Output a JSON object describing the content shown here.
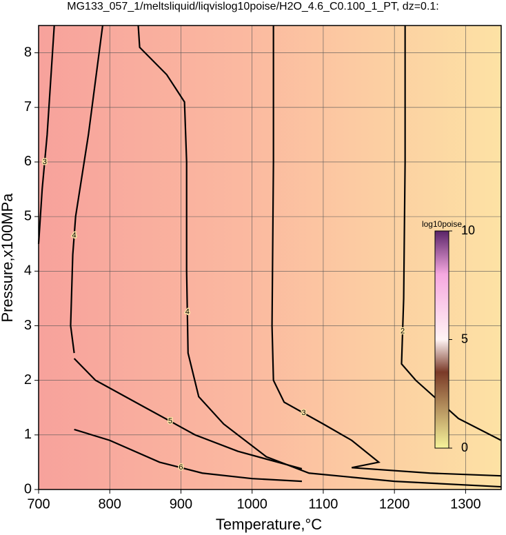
{
  "chart_data": {
    "type": "contour",
    "title": "MG133_057_1/meltsliquid/liqvislog10poise/H2O_4.6_C0.100_1_PT, dz=0.1:",
    "x_label": "Temperature,°C",
    "y_label": "Pressure,x100MPa",
    "xlim": [
      700,
      1350
    ],
    "ylim": [
      0,
      8.5
    ],
    "xticks": [
      700,
      800,
      900,
      1000,
      1100,
      1200,
      1300
    ],
    "yticks": [
      0,
      1,
      2,
      3,
      4,
      5,
      6,
      7,
      8
    ],
    "grid": true,
    "contours": [
      {
        "level": 2,
        "x": [
          1215,
          1215,
          1213,
          1210,
          1230,
          1290,
          1350
        ],
        "y": [
          8.5,
          6,
          3.5,
          2.3,
          2.0,
          1.3,
          0.9
        ]
      },
      {
        "level": 3,
        "x": [
          1030,
          1030,
          1028,
          1030,
          1045,
          1100,
          1140,
          1178,
          1140,
          1250,
          1350
        ],
        "y": [
          8.5,
          6,
          3,
          2,
          1.6,
          1.2,
          0.9,
          0.5,
          0.4,
          0.3,
          0.25
        ]
      },
      {
        "level": 4,
        "x": [
          840,
          842,
          880,
          905,
          908,
          908,
          910,
          925,
          960,
          1020,
          1080,
          1200,
          1350
        ],
        "y": [
          8.5,
          8.1,
          7.6,
          7.1,
          6,
          4,
          2.5,
          1.7,
          1.2,
          0.6,
          0.3,
          0.15,
          0.05
        ]
      },
      {
        "level": 4,
        "x": [
          790,
          770,
          752,
          748,
          745,
          750
        ],
        "y": [
          8.5,
          6.5,
          5,
          4.3,
          3,
          2.5
        ]
      },
      {
        "level": 5,
        "x": [
          750,
          780,
          850,
          920,
          980,
          1050,
          1070
        ],
        "y": [
          2.4,
          2.0,
          1.5,
          1.0,
          0.7,
          0.45,
          0.38
        ]
      },
      {
        "level": 6,
        "x": [
          750,
          800,
          870,
          930,
          1000,
          1070
        ],
        "y": [
          1.1,
          0.9,
          0.5,
          0.3,
          0.2,
          0.15
        ]
      },
      {
        "level": 3,
        "x": [
          722,
          712,
          705,
          700
        ],
        "y": [
          8.5,
          6.5,
          5.5,
          4.5
        ]
      }
    ],
    "colorbar": {
      "label": "log10poise",
      "lim": [
        0,
        10
      ],
      "ticks": [
        0,
        5,
        10
      ]
    }
  }
}
